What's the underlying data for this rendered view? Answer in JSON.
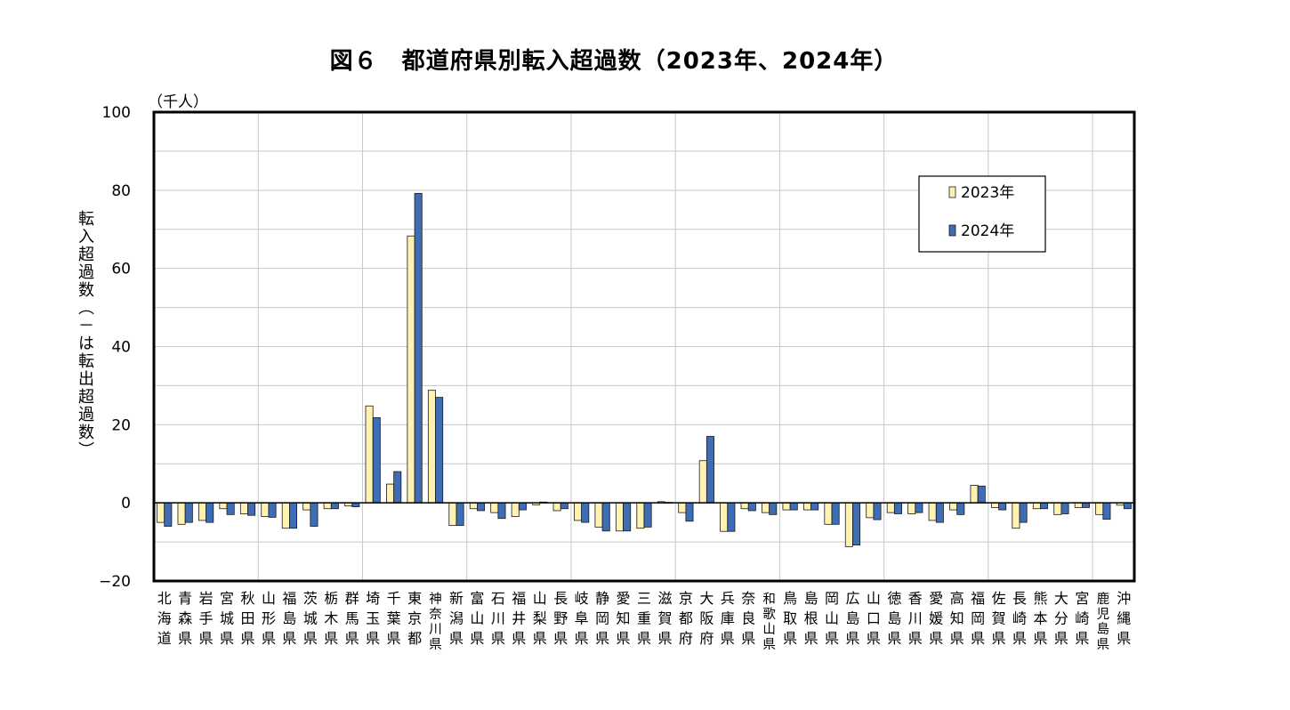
{
  "chart_data": {
    "type": "bar",
    "title": "図６　都道府県別転入超過数（2023年、2024年）",
    "unit_label": "（千人）",
    "ylabel": "転入超過数（－は転出超過数）",
    "xlabel": "",
    "ylim": [
      -20,
      100
    ],
    "yticks": [
      "100",
      "80",
      "60",
      "40",
      "20",
      "0",
      "−20"
    ],
    "ytick_values": [
      100,
      80,
      60,
      40,
      20,
      0,
      -20
    ],
    "grid": true,
    "legend_position": "top-right",
    "categories": [
      "北海道",
      "青森県",
      "岩手県",
      "宮城県",
      "秋田県",
      "山形県",
      "福島県",
      "茨城県",
      "栃木県",
      "群馬県",
      "埼玉県",
      "千葉県",
      "東京都",
      "神奈川県",
      "新潟県",
      "富山県",
      "石川県",
      "福井県",
      "山梨県",
      "長野県",
      "岐阜県",
      "静岡県",
      "愛知県",
      "三重県",
      "滋賀県",
      "京都府",
      "大阪府",
      "兵庫県",
      "奈良県",
      "和歌山県",
      "鳥取県",
      "島根県",
      "岡山県",
      "広島県",
      "山口県",
      "徳島県",
      "香川県",
      "愛媛県",
      "高知県",
      "福岡県",
      "佐賀県",
      "長崎県",
      "熊本県",
      "大分県",
      "宮崎県",
      "鹿児島県",
      "沖縄県"
    ],
    "series": [
      {
        "name": "2023年",
        "color": "#FFF2B3",
        "values": [
          -5.0,
          -5.5,
          -4.5,
          -1.5,
          -2.8,
          -3.5,
          -6.5,
          -1.8,
          -1.5,
          -0.8,
          24.8,
          4.8,
          68.3,
          28.8,
          -5.8,
          -1.5,
          -2.5,
          -3.5,
          -0.5,
          -2.0,
          -4.5,
          -6.2,
          -7.2,
          -6.5,
          0.3,
          -2.5,
          10.8,
          -7.3,
          -1.5,
          -2.5,
          -1.8,
          -1.8,
          -5.5,
          -11.2,
          -3.8,
          -2.5,
          -2.8,
          -4.5,
          -1.8,
          4.5,
          -1.2,
          -6.5,
          -1.5,
          -3.0,
          -1.2,
          -3.0,
          -0.6
        ]
      },
      {
        "name": "2024年",
        "color": "#3E6DB5",
        "values": [
          -6.0,
          -5.0,
          -5.0,
          -3.0,
          -3.2,
          -3.7,
          -6.5,
          -6.0,
          -1.5,
          -1.0,
          21.8,
          8.0,
          79.2,
          27.0,
          -5.8,
          -2.0,
          -4.0,
          -1.8,
          0.2,
          -1.5,
          -5.0,
          -7.2,
          -7.2,
          -6.2,
          0.1,
          -4.7,
          17.0,
          -7.3,
          -2.0,
          -3.0,
          -1.8,
          -1.8,
          -5.5,
          -10.8,
          -4.3,
          -2.8,
          -2.5,
          -5.0,
          -3.0,
          4.3,
          -1.8,
          -5.0,
          -1.5,
          -2.8,
          -1.2,
          -4.2,
          -1.5
        ]
      }
    ]
  }
}
